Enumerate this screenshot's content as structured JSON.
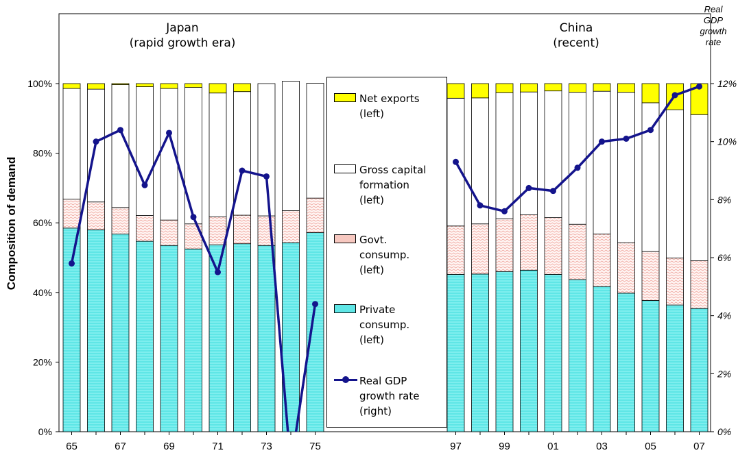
{
  "chart_data": {
    "type": "bar",
    "ylabel": "Composition of demand",
    "y2label": "Real GDP growth rate",
    "ylim": [
      0,
      100
    ],
    "y2lim": [
      0,
      12
    ],
    "yticks": [
      "0%",
      "20%",
      "40%",
      "60%",
      "80%",
      "100%"
    ],
    "y2ticks": [
      "0%",
      "2%",
      "4%",
      "6%",
      "8%",
      "10%",
      "12%"
    ],
    "legend_position": "center",
    "colors": {
      "private": "#5fe6e6",
      "govt": "#f7c8c0",
      "capital": "#ffffff",
      "netexports": "#ffff00",
      "gdp": "#14148c"
    },
    "panels": [
      {
        "title": [
          "Japan",
          "(rapid growth era)"
        ],
        "categories": [
          "65",
          "66",
          "67",
          "68",
          "69",
          "70",
          "71",
          "72",
          "73",
          "74",
          "75"
        ],
        "xtick_labels": [
          "65",
          "",
          "67",
          "",
          "69",
          "",
          "71",
          "",
          "73",
          "",
          "75"
        ],
        "series": [
          {
            "name": "Private consump. (left)",
            "values": [
              58.5,
              58.0,
              56.8,
              54.7,
              53.5,
              52.5,
              53.7,
              54.0,
              53.5,
              54.3,
              57.2
            ]
          },
          {
            "name": "Govt. consump. (left)",
            "values": [
              8.3,
              8.0,
              7.6,
              7.4,
              7.3,
              7.2,
              8.0,
              8.2,
              8.5,
              9.2,
              9.9
            ]
          },
          {
            "name": "Gross capital formation (left)",
            "values": [
              31.8,
              32.4,
              35.3,
              37.0,
              37.8,
              39.2,
              35.6,
              35.5,
              38.0,
              37.2,
              33.0
            ]
          },
          {
            "name": "Net exports (left)",
            "values": [
              1.4,
              1.6,
              0.3,
              0.9,
              1.4,
              1.1,
              2.7,
              2.3,
              0.0,
              0.0,
              0.0
            ]
          }
        ],
        "gdp_growth": [
          5.8,
          10.0,
          10.4,
          8.5,
          10.3,
          7.4,
          5.5,
          9.0,
          8.8,
          -1.2,
          4.4
        ]
      },
      {
        "title": [
          "China",
          "(recent)"
        ],
        "categories": [
          "97",
          "98",
          "99",
          "00",
          "01",
          "02",
          "03",
          "04",
          "05",
          "06",
          "07"
        ],
        "xtick_labels": [
          "97",
          "",
          "99",
          "",
          "01",
          "",
          "03",
          "",
          "05",
          "",
          "07"
        ],
        "series": [
          {
            "name": "Private consump. (left)",
            "values": [
              45.2,
              45.3,
              46.0,
              46.4,
              45.2,
              43.7,
              41.7,
              39.8,
              37.7,
              36.4,
              35.4
            ]
          },
          {
            "name": "Govt. consump. (left)",
            "values": [
              13.9,
              14.4,
              15.2,
              15.9,
              16.3,
              15.9,
              15.1,
              14.5,
              14.1,
              13.5,
              13.7
            ]
          },
          {
            "name": "Gross capital formation (left)",
            "values": [
              36.7,
              36.2,
              36.2,
              35.3,
              36.4,
              37.9,
              41.0,
              43.2,
              42.7,
              42.6,
              42.0
            ]
          },
          {
            "name": "Net exports (left)",
            "values": [
              4.2,
              4.1,
              2.6,
              2.4,
              2.1,
              2.5,
              2.2,
              2.5,
              5.5,
              7.5,
              8.9
            ]
          }
        ],
        "gdp_growth": [
          9.3,
          7.8,
          7.6,
          8.4,
          8.3,
          9.1,
          10.0,
          10.1,
          10.4,
          11.6,
          11.9
        ]
      }
    ]
  },
  "legend": {
    "netexports": "Net exports\n(left)",
    "capital": "Gross capital\nformation\n(left)",
    "govt": "Govt.\nconsump.\n(left)",
    "private": "Private\nconsump.\n(left)",
    "gdp": "Real GDP\ngrowth rate\n(right)"
  }
}
